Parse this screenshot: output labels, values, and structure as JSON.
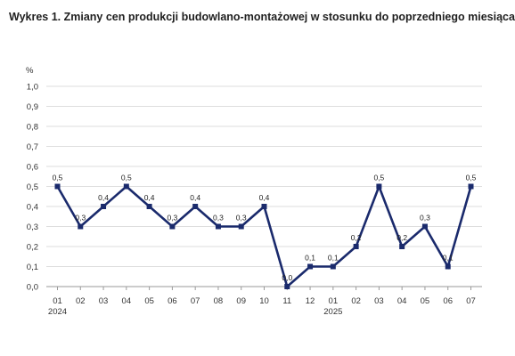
{
  "title": "Wykres 1. Zmiany cen produkcji budowlano-montażowej w stosunku do poprzedniego miesiąca",
  "chart_data": {
    "type": "line",
    "title": "Wykres 1. Zmiany cen produkcji budowlano-montażowej w stosunku do poprzedniego miesiąca",
    "ylabel": "%",
    "xlabel": "",
    "ylim": [
      0,
      1.0
    ],
    "yticks": [
      "0,0",
      "0,1",
      "0,2",
      "0,3",
      "0,4",
      "0,5",
      "0,6",
      "0,7",
      "0,8",
      "0,9",
      "1,0"
    ],
    "categories": [
      "01",
      "02",
      "03",
      "04",
      "05",
      "06",
      "07",
      "08",
      "09",
      "10",
      "11",
      "12",
      "01",
      "02",
      "03",
      "04",
      "05",
      "06",
      "07"
    ],
    "year_labels": [
      {
        "index": 0,
        "label": "2024"
      },
      {
        "index": 12,
        "label": "2025"
      }
    ],
    "series": [
      {
        "color": "#1a2a6c",
        "values": [
          0.5,
          0.3,
          0.4,
          0.5,
          0.4,
          0.3,
          0.4,
          0.3,
          0.3,
          0.4,
          0.0,
          0.1,
          0.1,
          0.2,
          0.5,
          0.2,
          0.3,
          0.1,
          0.5
        ],
        "data_labels": [
          "0,5",
          "0,3",
          "0,4",
          "0,5",
          "0,4",
          "0,3",
          "0,4",
          "0,3",
          "0,3",
          "0,4",
          "0,0",
          "0,1",
          "0,1",
          "0,2",
          "0,5",
          "0,2",
          "0,3",
          "0,1",
          "0,5"
        ]
      }
    ],
    "grid": true,
    "legend": "none"
  }
}
